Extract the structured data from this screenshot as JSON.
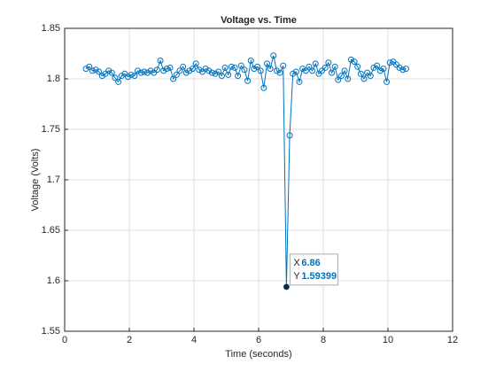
{
  "chart_data": {
    "type": "line",
    "title": "Voltage vs. Time",
    "x_label": "Time (seconds)",
    "y_label": "Voltage (Volts)",
    "x": [
      0.66,
      0.76,
      0.86,
      0.96,
      1.06,
      1.16,
      1.26,
      1.36,
      1.46,
      1.56,
      1.66,
      1.76,
      1.86,
      1.96,
      2.06,
      2.16,
      2.26,
      2.36,
      2.46,
      2.56,
      2.66,
      2.76,
      2.86,
      2.96,
      3.06,
      3.16,
      3.26,
      3.36,
      3.46,
      3.56,
      3.66,
      3.76,
      3.86,
      3.96,
      4.06,
      4.16,
      4.26,
      4.36,
      4.46,
      4.56,
      4.66,
      4.76,
      4.86,
      4.96,
      5.06,
      5.16,
      5.26,
      5.36,
      5.46,
      5.56,
      5.66,
      5.76,
      5.86,
      5.96,
      6.06,
      6.16,
      6.26,
      6.36,
      6.46,
      6.56,
      6.66,
      6.76,
      6.86,
      6.96,
      7.06,
      7.16,
      7.26,
      7.36,
      7.46,
      7.56,
      7.66,
      7.76,
      7.86,
      7.96,
      8.06,
      8.16,
      8.26,
      8.36,
      8.46,
      8.56,
      8.66,
      8.76,
      8.86,
      8.96,
      9.06,
      9.16,
      9.26,
      9.36,
      9.46,
      9.56,
      9.66,
      9.76,
      9.86,
      9.96,
      10.06,
      10.16,
      10.26,
      10.36,
      10.46,
      10.56
    ],
    "series": [
      {
        "name": "Voltage",
        "color": "#0072bd",
        "values": [
          1.81,
          1.812,
          1.808,
          1.809,
          1.807,
          1.803,
          1.805,
          1.808,
          1.806,
          1.801,
          1.797,
          1.803,
          1.805,
          1.802,
          1.804,
          1.803,
          1.808,
          1.806,
          1.807,
          1.806,
          1.808,
          1.806,
          1.809,
          1.818,
          1.808,
          1.81,
          1.811,
          1.8,
          1.804,
          1.808,
          1.812,
          1.806,
          1.808,
          1.81,
          1.815,
          1.809,
          1.807,
          1.81,
          1.808,
          1.806,
          1.805,
          1.807,
          1.803,
          1.811,
          1.804,
          1.812,
          1.811,
          1.803,
          1.813,
          1.809,
          1.798,
          1.818,
          1.81,
          1.812,
          1.808,
          1.791,
          1.815,
          1.81,
          1.823,
          1.808,
          1.806,
          1.813,
          1.59399,
          1.744,
          1.805,
          1.807,
          1.797,
          1.81,
          1.808,
          1.812,
          1.808,
          1.815,
          1.805,
          1.808,
          1.811,
          1.816,
          1.806,
          1.812,
          1.799,
          1.803,
          1.808,
          1.8,
          1.819,
          1.817,
          1.812,
          1.805,
          1.8,
          1.806,
          1.803,
          1.811,
          1.813,
          1.808,
          1.81,
          1.797,
          1.816,
          1.817,
          1.814,
          1.811,
          1.809,
          1.81
        ]
      }
    ],
    "xlim": [
      0,
      12
    ],
    "xticks": [
      0,
      2,
      4,
      6,
      8,
      10,
      12
    ],
    "ylim": [
      1.55,
      1.85
    ],
    "yticks": [
      1.55,
      1.6,
      1.65,
      1.7,
      1.75,
      1.8,
      1.85
    ],
    "grid": true,
    "datatip": {
      "x_label": "X",
      "x": 6.86,
      "y_label": "Y",
      "y": 1.59399
    }
  }
}
